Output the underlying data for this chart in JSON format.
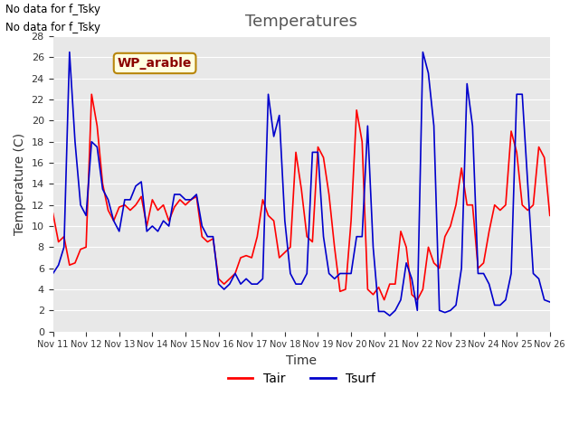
{
  "title": "Temperatures",
  "xlabel": "Time",
  "ylabel": "Temperature (C)",
  "ylim": [
    0,
    28
  ],
  "bg_color": "#e8e8e8",
  "fig_color": "#ffffff",
  "line_color_tair": "#ff0000",
  "line_color_tsurf": "#0000cc",
  "label_box": "WP_arable",
  "annotation1": "No data for f_Tsky",
  "annotation2": "No data for f_Tsky",
  "x_tick_labels": [
    "Nov 11",
    "Nov 12",
    "Nov 13",
    "Nov 14",
    "Nov 15",
    "Nov 16",
    "Nov 17",
    "Nov 18",
    "Nov 19",
    "Nov 20",
    "Nov 21",
    "Nov 22",
    "Nov 23",
    "Nov 24",
    "Nov 25",
    "Nov 26"
  ],
  "tair": [
    11.2,
    8.5,
    9.0,
    6.3,
    6.5,
    7.8,
    8.0,
    22.5,
    19.5,
    14.0,
    11.5,
    10.5,
    11.8,
    12.0,
    11.5,
    12.0,
    12.8,
    10.0,
    12.5,
    11.5,
    12.0,
    10.5,
    11.8,
    12.5,
    12.0,
    12.5,
    12.8,
    9.0,
    8.5,
    8.8,
    5.0,
    4.5,
    5.0,
    5.5,
    7.0,
    7.2,
    7.0,
    9.0,
    12.5,
    11.0,
    10.5,
    7.0,
    7.5,
    8.0,
    17.0,
    13.5,
    9.0,
    8.5,
    17.5,
    16.5,
    13.0,
    8.0,
    3.8,
    4.0,
    10.5,
    21.0,
    18.0,
    4.0,
    3.5,
    4.2,
    3.0,
    4.5,
    4.5,
    9.5,
    8.0,
    3.5,
    3.0,
    4.0,
    8.0,
    6.5,
    6.0,
    9.0,
    10.0,
    12.0,
    15.5,
    12.0,
    12.0,
    6.0,
    6.5,
    9.5,
    12.0,
    11.5,
    12.0,
    19.0,
    17.0,
    12.0,
    11.5,
    12.0,
    17.5,
    16.5,
    11.0
  ],
  "tsurf": [
    5.5,
    6.3,
    8.0,
    26.5,
    18.0,
    12.0,
    11.0,
    18.0,
    17.5,
    13.5,
    12.5,
    10.5,
    9.5,
    12.5,
    12.5,
    13.8,
    14.2,
    9.5,
    10.0,
    9.5,
    10.5,
    10.0,
    13.0,
    13.0,
    12.5,
    12.5,
    13.0,
    10.0,
    9.0,
    9.0,
    4.5,
    4.0,
    4.5,
    5.5,
    4.5,
    5.0,
    4.5,
    4.5,
    5.0,
    22.5,
    18.5,
    20.5,
    10.5,
    5.5,
    4.5,
    4.5,
    5.5,
    17.0,
    17.0,
    9.0,
    5.5,
    5.0,
    5.5,
    5.5,
    5.5,
    9.0,
    9.0,
    19.5,
    8.0,
    1.9,
    1.9,
    1.5,
    2.0,
    3.0,
    6.5,
    5.0,
    2.0,
    26.5,
    24.5,
    19.5,
    2.0,
    1.8,
    2.0,
    2.5,
    6.0,
    23.5,
    19.5,
    5.5,
    5.5,
    4.5,
    2.5,
    2.5,
    3.0,
    5.5,
    22.5,
    22.5,
    14.0,
    5.5,
    5.0,
    3.0,
    2.8
  ]
}
